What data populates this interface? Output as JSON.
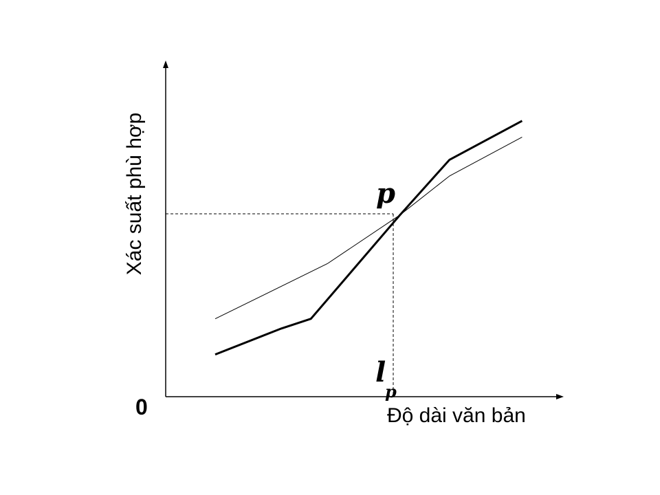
{
  "diagram": {
    "ylabel": "Xác suất phù hợp",
    "xlabel": "Độ dài văn bản",
    "origin_label": "0",
    "p_label": "p",
    "lp_label": "l",
    "lp_subscript": "p"
  },
  "chart_data": {
    "type": "line",
    "title": "",
    "xlabel": "Độ dài văn bản",
    "ylabel": "Xác suất phù hợp",
    "annotations": [
      "p",
      "l_p",
      "0"
    ],
    "series": [
      {
        "style": "thick",
        "x": [
          1.5,
          3.5,
          4.4,
          7.1,
          8.6,
          10.8
        ],
        "y": [
          1.3,
          2.1,
          2.4,
          5.6,
          7.3,
          8.5
        ]
      },
      {
        "style": "thin",
        "x": [
          1.5,
          4.9,
          7.1,
          8.6,
          10.8
        ],
        "y": [
          2.4,
          4.1,
          5.6,
          6.8,
          8.0
        ]
      }
    ],
    "intersection": {
      "x": 7.1,
      "y": 5.6
    },
    "xlim": [
      0,
      12
    ],
    "ylim": [
      0,
      10
    ],
    "colors": {
      "lines": "#000000",
      "background": "#ffffff"
    }
  }
}
